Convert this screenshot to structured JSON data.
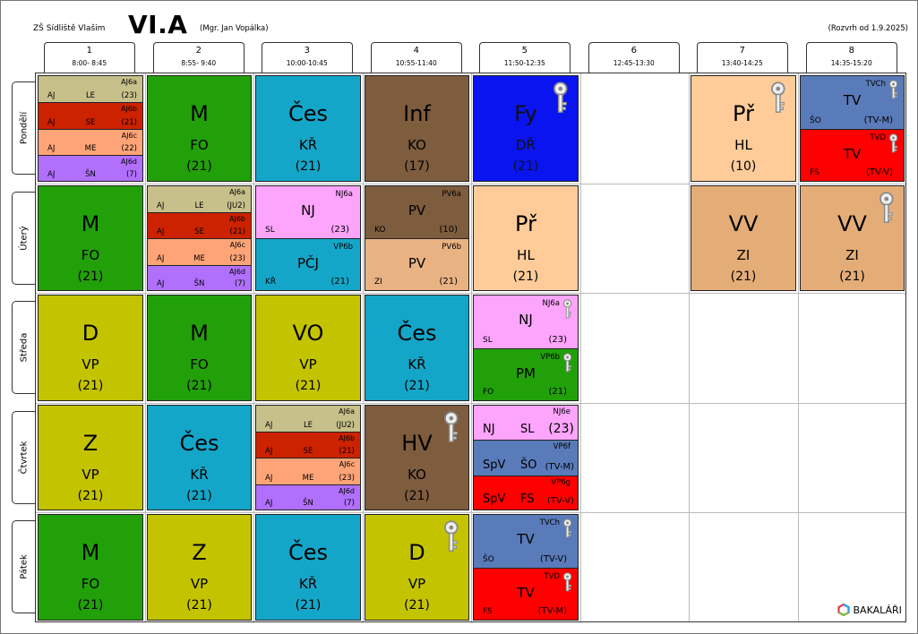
{
  "header": {
    "school": "ZŠ Sídliště Vlašim",
    "class_name": "VI.A",
    "teacher": "(Mgr. Jan Vopálka)",
    "valid_from": "(Rozvrh od 1.9.2025)"
  },
  "periods": [
    {
      "num": "1",
      "time": "8:00- 8:45"
    },
    {
      "num": "2",
      "time": "8:55- 9:40"
    },
    {
      "num": "3",
      "time": "10:00-10:45"
    },
    {
      "num": "4",
      "time": "10:55-11:40"
    },
    {
      "num": "5",
      "time": "11:50-12:35"
    },
    {
      "num": "6",
      "time": "12:45-13:30"
    },
    {
      "num": "7",
      "time": "13:40-14:25"
    },
    {
      "num": "8",
      "time": "14:35-15:20"
    }
  ],
  "days": [
    "Pondělí",
    "Úterý",
    "Středa",
    "Čtvrtek",
    "Pátek"
  ],
  "colors": {
    "green": "#22a00a",
    "cyan": "#14a6c8",
    "brown": "#7e5c3e",
    "blue": "#0a14f0",
    "peach": "#ffcc99",
    "tan": "#e4ad77",
    "olive": "#c4c300",
    "red": "#ff0000",
    "steel": "#5a7bb9",
    "khaki": "#c7c08a",
    "dkred": "#cc2200",
    "salmon": "#ffa477",
    "purple": "#b170fc",
    "pink": "#fda4fd",
    "sand": "#e8b283"
  },
  "lessons": [
    {
      "d": 0,
      "p": 1,
      "type": "big",
      "subj": "M",
      "tch": "FO",
      "room": "(21)",
      "color": "#22a00a"
    },
    {
      "d": 0,
      "p": 2,
      "type": "big",
      "subj": "Čes",
      "tch": "KŘ",
      "room": "(21)",
      "color": "#14a6c8"
    },
    {
      "d": 0,
      "p": 3,
      "type": "big",
      "subj": "Inf",
      "tch": "KO",
      "room": "(17)",
      "color": "#7e5c3e"
    },
    {
      "d": 0,
      "p": 4,
      "type": "big",
      "subj": "Fy",
      "tch": "DŘ",
      "room": "(21)",
      "color": "#0a14f0",
      "key": true
    },
    {
      "d": 0,
      "p": 6,
      "type": "big",
      "subj": "Př",
      "tch": "HL",
      "room": "(10)",
      "color": "#ffcc99",
      "key": true
    },
    {
      "d": 1,
      "p": 0,
      "type": "big",
      "subj": "M",
      "tch": "FO",
      "room": "(21)",
      "color": "#22a00a"
    },
    {
      "d": 1,
      "p": 4,
      "type": "big",
      "subj": "Př",
      "tch": "HL",
      "room": "(21)",
      "color": "#ffcc99"
    },
    {
      "d": 1,
      "p": 6,
      "type": "big",
      "subj": "VV",
      "tch": "ZI",
      "room": "(21)",
      "color": "#e4ad77"
    },
    {
      "d": 1,
      "p": 7,
      "type": "big",
      "subj": "VV",
      "tch": "ZI",
      "room": "(21)",
      "color": "#e4ad77",
      "key": true
    },
    {
      "d": 2,
      "p": 0,
      "type": "big",
      "subj": "D",
      "tch": "VP",
      "room": "(21)",
      "color": "#c4c300"
    },
    {
      "d": 2,
      "p": 1,
      "type": "big",
      "subj": "M",
      "tch": "FO",
      "room": "(21)",
      "color": "#22a00a"
    },
    {
      "d": 2,
      "p": 2,
      "type": "big",
      "subj": "VO",
      "tch": "VP",
      "room": "(21)",
      "color": "#c4c300"
    },
    {
      "d": 2,
      "p": 3,
      "type": "big",
      "subj": "Čes",
      "tch": "KŘ",
      "room": "(21)",
      "color": "#14a6c8"
    },
    {
      "d": 3,
      "p": 0,
      "type": "big",
      "subj": "Z",
      "tch": "VP",
      "room": "(21)",
      "color": "#c4c300"
    },
    {
      "d": 3,
      "p": 1,
      "type": "big",
      "subj": "Čes",
      "tch": "KŘ",
      "room": "(21)",
      "color": "#14a6c8"
    },
    {
      "d": 3,
      "p": 3,
      "type": "big",
      "subj": "HV",
      "tch": "KO",
      "room": "(21)",
      "color": "#7e5c3e",
      "key": true
    },
    {
      "d": 4,
      "p": 0,
      "type": "big",
      "subj": "M",
      "tch": "FO",
      "room": "(21)",
      "color": "#22a00a"
    },
    {
      "d": 4,
      "p": 1,
      "type": "big",
      "subj": "Z",
      "tch": "VP",
      "room": "(21)",
      "color": "#c4c300"
    },
    {
      "d": 4,
      "p": 2,
      "type": "big",
      "subj": "Čes",
      "tch": "KŘ",
      "room": "(21)",
      "color": "#14a6c8"
    },
    {
      "d": 4,
      "p": 3,
      "type": "big",
      "subj": "D",
      "tch": "VP",
      "room": "(21)",
      "color": "#c4c300",
      "key": true
    }
  ],
  "quad_lessons": [
    {
      "d": 0,
      "p": 0,
      "rows": [
        {
          "grp": "AJ6a",
          "subj": "AJ",
          "tch": "LE",
          "room": "(23)",
          "color": "#c7c08a"
        },
        {
          "grp": "AJ6b",
          "subj": "AJ",
          "tch": "SE",
          "room": "(21)",
          "color": "#cc2200"
        },
        {
          "grp": "AJ6c",
          "subj": "AJ",
          "tch": "ME",
          "room": "(22)",
          "color": "#ffa477"
        },
        {
          "grp": "AJ6d",
          "subj": "AJ",
          "tch": "ŠN",
          "room": "(7)",
          "color": "#b170fc"
        }
      ]
    },
    {
      "d": 1,
      "p": 1,
      "rows": [
        {
          "grp": "AJ6a",
          "subj": "AJ",
          "tch": "LE",
          "room": "(JU2)",
          "color": "#c7c08a"
        },
        {
          "grp": "AJ6b",
          "subj": "AJ",
          "tch": "SE",
          "room": "(21)",
          "color": "#cc2200"
        },
        {
          "grp": "AJ6c",
          "subj": "AJ",
          "tch": "ME",
          "room": "(23)",
          "color": "#ffa477"
        },
        {
          "grp": "AJ6d",
          "subj": "AJ",
          "tch": "ŠN",
          "room": "(7)",
          "color": "#b170fc"
        }
      ]
    },
    {
      "d": 3,
      "p": 2,
      "rows": [
        {
          "grp": "AJ6a",
          "subj": "AJ",
          "tch": "LE",
          "room": "(JU2)",
          "color": "#c7c08a"
        },
        {
          "grp": "AJ6b",
          "subj": "AJ",
          "tch": "SE",
          "room": "(21)",
          "color": "#cc2200"
        },
        {
          "grp": "AJ6c",
          "subj": "AJ",
          "tch": "ME",
          "room": "(23)",
          "color": "#ffa477"
        },
        {
          "grp": "AJ6d",
          "subj": "AJ",
          "tch": "ŠN",
          "room": "(7)",
          "color": "#b170fc"
        }
      ]
    }
  ],
  "half_lessons": [
    {
      "d": 0,
      "p": 7,
      "rows": [
        {
          "grp": "TVCh",
          "subj": "TV",
          "tch": "ŠO",
          "room": "(TV-M)",
          "color": "#5a7bb9",
          "key": true
        },
        {
          "grp": "TVD",
          "subj": "TV",
          "tch": "FS",
          "room": "(TV-V)",
          "color": "#ff0000",
          "key": true
        }
      ]
    },
    {
      "d": 1,
      "p": 2,
      "rows": [
        {
          "grp": "NJ6a",
          "subj": "NJ",
          "tch": "SL",
          "room": "(23)",
          "color": "#fda4fd"
        },
        {
          "grp": "VP6b",
          "subj": "PČJ",
          "tch": "KŘ",
          "room": "(21)",
          "color": "#14a6c8"
        }
      ]
    },
    {
      "d": 1,
      "p": 3,
      "rows": [
        {
          "grp": "PV6a",
          "subj": "PV",
          "tch": "KO",
          "room": "(10)",
          "color": "#7e5c3e"
        },
        {
          "grp": "PV6b",
          "subj": "PV",
          "tch": "ZI",
          "room": "(21)",
          "color": "#e8b283"
        }
      ]
    },
    {
      "d": 2,
      "p": 4,
      "rows": [
        {
          "grp": "NJ6a",
          "subj": "NJ",
          "tch": "SL",
          "room": "(23)",
          "color": "#fda4fd",
          "key": true
        },
        {
          "grp": "VP6b",
          "subj": "PM",
          "tch": "FO",
          "room": "(21)",
          "color": "#22a00a",
          "key": true
        }
      ]
    },
    {
      "d": 4,
      "p": 4,
      "rows": [
        {
          "grp": "TVCh",
          "subj": "TV",
          "tch": "ŠO",
          "room": "(TV-V)",
          "color": "#5a7bb9",
          "key": true
        },
        {
          "grp": "TVD",
          "subj": "TV",
          "tch": "FS",
          "room": "(TV-M)",
          "color": "#ff0000",
          "key": true
        }
      ]
    }
  ],
  "triple_lessons": [
    {
      "d": 3,
      "p": 4,
      "rows": [
        {
          "grp": "NJ6e",
          "subj": "NJ",
          "tch": "SL",
          "room": "(23)",
          "color": "#fda4fd"
        },
        {
          "grp": "VP6f",
          "subj": "SpV",
          "tch": "ŠO",
          "room": "(TV-M)",
          "color": "#5a7bb9"
        },
        {
          "grp": "VP6g",
          "subj": "SpV",
          "tch": "FS",
          "room": "(TV-V)",
          "color": "#ff0000"
        }
      ]
    }
  ],
  "footer": {
    "logo_text": "BAKALÁŘI"
  }
}
